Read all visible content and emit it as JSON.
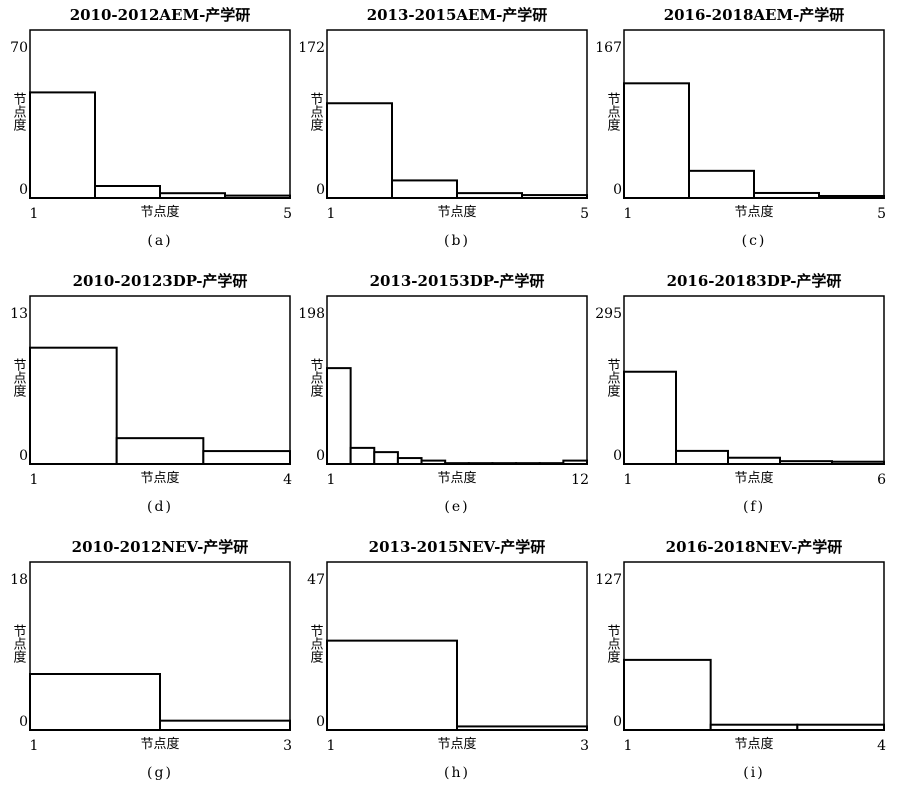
{
  "chart_data": [
    {
      "type": "histogram",
      "title": "2010-2012AEM-产学研",
      "xlabel": "节点度",
      "ylabel": "节点度",
      "caption": "(a)",
      "bins": [
        1,
        2,
        3,
        4,
        5
      ],
      "values": [
        44,
        5,
        2,
        1
      ],
      "xlim": [
        1,
        5
      ],
      "ylim": [
        0,
        70
      ],
      "xticks": [
        1,
        5
      ],
      "yticks": [
        0,
        70
      ],
      "color": "#ffffff",
      "edgecolor": "#000000"
    },
    {
      "type": "histogram",
      "title": "2013-2015AEM-产学研",
      "xlabel": "节点度",
      "ylabel": "节点度",
      "caption": "(b)",
      "bins": [
        1,
        2,
        3,
        4,
        5
      ],
      "values": [
        97,
        18,
        5,
        3
      ],
      "xlim": [
        1,
        5
      ],
      "ylim": [
        0,
        172
      ],
      "xticks": [
        1,
        5
      ],
      "yticks": [
        0,
        172
      ],
      "color": "#ffffff",
      "edgecolor": "#000000"
    },
    {
      "type": "histogram",
      "title": "2016-2018AEM-产学研",
      "xlabel": "节点度",
      "ylabel": "节点度",
      "caption": "(c)",
      "bins": [
        1,
        2,
        3,
        4,
        5
      ],
      "values": [
        114,
        27,
        5,
        2
      ],
      "xlim": [
        1,
        5
      ],
      "ylim": [
        0,
        167
      ],
      "xticks": [
        1,
        5
      ],
      "yticks": [
        0,
        167
      ],
      "color": "#ffffff",
      "edgecolor": "#000000"
    },
    {
      "type": "histogram",
      "title": "2010-20123DP-产学研",
      "xlabel": "节点度",
      "ylabel": "节点度",
      "caption": "(d)",
      "bins": [
        1,
        2,
        3,
        4
      ],
      "values": [
        9,
        2,
        1
      ],
      "xlim": [
        1,
        4
      ],
      "ylim": [
        0,
        13
      ],
      "xticks": [
        1,
        4
      ],
      "yticks": [
        0,
        13
      ],
      "color": "#ffffff",
      "edgecolor": "#000000"
    },
    {
      "type": "histogram",
      "title": "2013-20153DP-产学研",
      "xlabel": "节点度",
      "ylabel": "节点度",
      "caption": "(e)",
      "bins": [
        1,
        2,
        3,
        4,
        5,
        6,
        7,
        8,
        9,
        10,
        11,
        12
      ],
      "values": [
        113,
        19,
        14,
        7,
        4,
        1,
        1,
        1,
        1,
        1,
        4
      ],
      "xlim": [
        1,
        12
      ],
      "ylim": [
        0,
        198
      ],
      "xticks": [
        1,
        12
      ],
      "yticks": [
        0,
        198
      ],
      "color": "#ffffff",
      "edgecolor": "#000000"
    },
    {
      "type": "histogram",
      "title": "2016-20183DP-产学研",
      "xlabel": "节点度",
      "ylabel": "节点度",
      "caption": "(f)",
      "bins": [
        1,
        2,
        3,
        4,
        5,
        6
      ],
      "values": [
        162,
        23,
        11,
        5,
        4
      ],
      "xlim": [
        1,
        6
      ],
      "ylim": [
        0,
        295
      ],
      "xticks": [
        1,
        6
      ],
      "yticks": [
        0,
        295
      ],
      "color": "#ffffff",
      "edgecolor": "#000000"
    },
    {
      "type": "histogram",
      "title": "2010-2012NEV-产学研",
      "xlabel": "节点度",
      "ylabel": "节点度",
      "caption": "(g)",
      "bins": [
        1,
        2,
        3
      ],
      "values": [
        6,
        1
      ],
      "xlim": [
        1,
        3
      ],
      "ylim": [
        0,
        18
      ],
      "xticks": [
        1,
        3
      ],
      "yticks": [
        0,
        18
      ],
      "color": "#ffffff",
      "edgecolor": "#000000"
    },
    {
      "type": "histogram",
      "title": "2013-2015NEV-产学研",
      "xlabel": "节点度",
      "ylabel": "节点度",
      "caption": "(h)",
      "bins": [
        1,
        2,
        3
      ],
      "values": [
        25,
        1
      ],
      "xlim": [
        1,
        3
      ],
      "ylim": [
        0,
        47
      ],
      "xticks": [
        1,
        3
      ],
      "yticks": [
        0,
        47
      ],
      "color": "#ffffff",
      "edgecolor": "#000000"
    },
    {
      "type": "histogram",
      "title": "2016-2018NEV-产学研",
      "xlabel": "节点度",
      "ylabel": "节点度",
      "caption": "(i)",
      "bins": [
        1,
        2,
        3,
        4
      ],
      "values": [
        53,
        4,
        4
      ],
      "xlim": [
        1,
        4
      ],
      "ylim": [
        0,
        127
      ],
      "xticks": [
        1,
        4
      ],
      "yticks": [
        0,
        127
      ],
      "color": "#ffffff",
      "edgecolor": "#000000"
    }
  ]
}
